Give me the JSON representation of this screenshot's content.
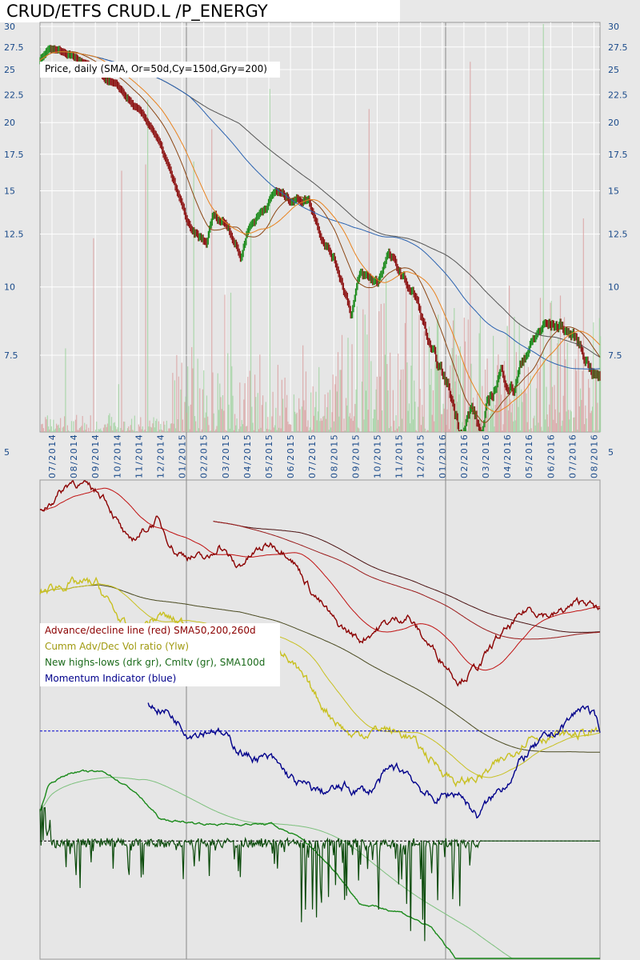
{
  "title": "CRUD/ETFS CRUD.L /P_ENERGY",
  "chart_data": [
    {
      "type": "line",
      "name": "price-panel",
      "legend": "Price, daily (SMA, Or=50d,Cy=150d,Gry=200)",
      "yscale": "log",
      "ylim": [
        5,
        30
      ],
      "yticks": [
        "30",
        "27.5",
        "25",
        "22.5",
        "20",
        "17.5",
        "15",
        "12.5",
        "10",
        "7.5"
      ],
      "ytick_values": [
        30,
        27.5,
        25,
        22.5,
        20,
        17.5,
        15,
        12.5,
        10,
        7.5
      ],
      "xlabel_months": [
        "07/2014",
        "08/2014",
        "09/2014",
        "10/2014",
        "11/2014",
        "12/2014",
        "01/2015",
        "02/2015",
        "03/2015",
        "04/2015",
        "05/2015",
        "06/2015",
        "07/2015",
        "08/2015",
        "09/2015",
        "10/2015",
        "11/2015",
        "12/2015",
        "01/2016",
        "02/2016",
        "03/2016",
        "04/2016",
        "05/2016",
        "06/2016",
        "07/2016",
        "08/2016"
      ],
      "x_unit": "months since mid-June 2014",
      "price_keypoints": [
        [
          0,
          26
        ],
        [
          0.4,
          27.5
        ],
        [
          1.5,
          26.5
        ],
        [
          2.4,
          25
        ],
        [
          3.7,
          23
        ],
        [
          4.3,
          21.5
        ],
        [
          5.2,
          19.5
        ],
        [
          5.7,
          17.5
        ],
        [
          6.3,
          15
        ],
        [
          7.0,
          12.5
        ],
        [
          7.7,
          12
        ],
        [
          8.0,
          13.5
        ],
        [
          8.7,
          13
        ],
        [
          9.3,
          11.3
        ],
        [
          9.6,
          12.8
        ],
        [
          10.4,
          14
        ],
        [
          10.9,
          15
        ],
        [
          11.5,
          14.5
        ],
        [
          12.4,
          14.5
        ],
        [
          13.0,
          12.5
        ],
        [
          13.7,
          11
        ],
        [
          14.4,
          9
        ],
        [
          14.8,
          10.5
        ],
        [
          15.6,
          10.2
        ],
        [
          16.1,
          11.5
        ],
        [
          16.7,
          10.5
        ],
        [
          17.4,
          9.5
        ],
        [
          18.1,
          7.5
        ],
        [
          18.9,
          6.5
        ],
        [
          19.4,
          5.5
        ],
        [
          20.0,
          6
        ],
        [
          20.4,
          5.3
        ],
        [
          20.7,
          6
        ],
        [
          21.3,
          7
        ],
        [
          21.9,
          6.5
        ],
        [
          22.4,
          7.5
        ],
        [
          23.3,
          8.5
        ],
        [
          24.1,
          8.5
        ],
        [
          24.8,
          8
        ],
        [
          25.6,
          7
        ],
        [
          25.9,
          6.8
        ]
      ],
      "sma_periods": {
        "orange": 50,
        "cyan": 150,
        "gray": 200
      },
      "colors": {
        "up": "#1a8a1a",
        "down": "#8b1010",
        "sma50": "#e8821e",
        "sma150": "#2a62b0",
        "sma200": "#555555",
        "vol_up": "#9fd39f",
        "vol_down": "#d9a0a0"
      }
    },
    {
      "type": "line",
      "name": "breadth-panel",
      "ytick_left": "5",
      "ytick_right": "5",
      "value_unit": "relative index (0-100)",
      "legend": [
        "Advance/decline line (red) SMA50,200,260d",
        "Cumm Adv/Dec Vol ratio (Ylw)",
        "New highs-lows (drk gr), Cmltv (gr), SMA100d",
        "Momentum Indicator (blue)"
      ],
      "series": [
        {
          "name": "Advance/decline line",
          "color": "#8b0000",
          "sma": [
            50,
            200,
            260
          ],
          "points": [
            [
              0,
              93.3
            ],
            [
              1.5,
              100
            ],
            [
              3.0,
              96.7
            ],
            [
              4.1,
              86.7
            ],
            [
              5.4,
              91.7
            ],
            [
              6.3,
              85
            ],
            [
              7.8,
              83.3
            ],
            [
              8.3,
              86.7
            ],
            [
              9.1,
              81.7
            ],
            [
              10,
              85
            ],
            [
              10.7,
              86.7
            ],
            [
              11.5,
              85
            ],
            [
              12.6,
              76.7
            ],
            [
              13.7,
              70
            ],
            [
              14.8,
              66.7
            ],
            [
              15.9,
              70
            ],
            [
              17,
              71.7
            ],
            [
              17.8,
              66.7
            ],
            [
              19.4,
              58.3
            ],
            [
              20.4,
              61.7
            ],
            [
              21.1,
              66.7
            ],
            [
              21.9,
              70
            ],
            [
              22.6,
              73.3
            ],
            [
              23.7,
              71.7
            ],
            [
              25.2,
              75
            ],
            [
              25.9,
              72.5
            ]
          ]
        },
        {
          "name": "Cumm Adv/Dec Vol ratio",
          "color": "#c8c020",
          "sma": [
            50,
            200
          ],
          "points": [
            [
              0,
              76.7
            ],
            [
              1.1,
              78.3
            ],
            [
              2.6,
              78.3
            ],
            [
              4.1,
              68.3
            ],
            [
              5.6,
              71.7
            ],
            [
              7.8,
              68.3
            ],
            [
              9.3,
              66.7
            ],
            [
              10.7,
              68.3
            ],
            [
              11.9,
              60
            ],
            [
              13,
              53.3
            ],
            [
              14.4,
              46.7
            ],
            [
              15.9,
              48.3
            ],
            [
              17,
              46.7
            ],
            [
              18.1,
              41.7
            ],
            [
              19.4,
              36.7
            ],
            [
              20.4,
              38.3
            ],
            [
              21.5,
              41.7
            ],
            [
              22.6,
              46.7
            ],
            [
              24.1,
              46.7
            ],
            [
              25.9,
              47.5
            ]
          ]
        },
        {
          "name": "Momentum Indicator",
          "color": "#00008b",
          "zero": 47.7,
          "points": [
            [
              5,
              53.3
            ],
            [
              5.9,
              51.7
            ],
            [
              6.9,
              47.5
            ],
            [
              8.1,
              48.3
            ],
            [
              8.9,
              45
            ],
            [
              9.6,
              42.5
            ],
            [
              10.7,
              41.7
            ],
            [
              11.9,
              36.7
            ],
            [
              13,
              35
            ],
            [
              14.1,
              35.8
            ],
            [
              15.2,
              35
            ],
            [
              16.3,
              40
            ],
            [
              17,
              39.2
            ],
            [
              18.1,
              33.3
            ],
            [
              19.4,
              35
            ],
            [
              20.2,
              30
            ],
            [
              21.5,
              36.7
            ],
            [
              22.6,
              43.3
            ],
            [
              24.1,
              48.3
            ],
            [
              25.2,
              53.3
            ],
            [
              25.9,
              48.3
            ]
          ]
        },
        {
          "name": "Cumulative new highs-lows",
          "color": "#1a8a1a",
          "sma": [
            100
          ],
          "points": [
            [
              0,
              30.8
            ],
            [
              0.4,
              36.7
            ],
            [
              1.5,
              39.2
            ],
            [
              3,
              39.2
            ],
            [
              4.4,
              35
            ],
            [
              5.6,
              29.2
            ],
            [
              7.8,
              28.3
            ],
            [
              10.7,
              28.3
            ],
            [
              12.2,
              25
            ],
            [
              13.7,
              18.3
            ],
            [
              14.8,
              11.7
            ],
            [
              16.7,
              10
            ],
            [
              18.1,
              6.7
            ],
            [
              19.3,
              0
            ],
            [
              20.4,
              -4.7
            ],
            [
              25.9,
              -4.7
            ]
          ]
        },
        {
          "name": "New highs-lows daily",
          "color": "#0a4a0a",
          "zero": 24.8
        }
      ]
    }
  ]
}
